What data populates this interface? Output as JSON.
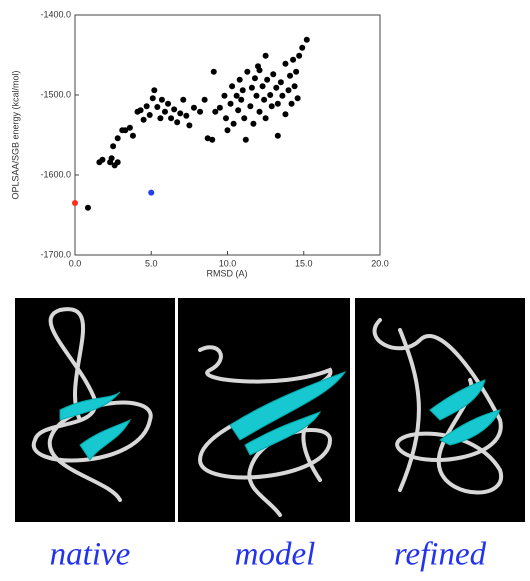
{
  "chart_data": {
    "type": "scatter",
    "xlabel": "RMSD (A)",
    "ylabel": "OPLSAA/SGB energy (kcal/mol)",
    "xlim": [
      0,
      20
    ],
    "ylim": [
      -1700,
      -1400
    ],
    "xticks": [
      {
        "value": 0,
        "label": "0.0"
      },
      {
        "value": 5,
        "label": "5.0"
      },
      {
        "value": 10,
        "label": "10.0"
      },
      {
        "value": 15,
        "label": "15.0"
      },
      {
        "value": 20,
        "label": "20.0"
      }
    ],
    "yticks": [
      {
        "value": -1700,
        "label": "-1700.0"
      },
      {
        "value": -1600,
        "label": "-1600.0"
      },
      {
        "value": -1500,
        "label": "-1500.0"
      },
      {
        "value": -1400,
        "label": "-1400.0"
      }
    ],
    "series": [
      {
        "color": "#000000",
        "x": [
          0.85,
          1.6,
          1.8,
          2.3,
          2.4,
          2.6,
          2.8,
          2.5,
          2.8,
          3.1,
          3.3,
          3.6,
          3.8,
          4.1,
          4.3,
          4.5,
          4.7,
          4.9,
          5.1,
          5.2,
          5.4,
          5.6,
          5.7,
          5.9,
          6.1,
          6.3,
          6.5,
          6.7,
          6.9,
          7.1,
          7.3,
          7.5,
          7.8,
          8.2,
          8.5,
          8.7,
          9.0,
          9.1,
          9.2,
          9.5,
          9.8,
          9.9,
          10.0,
          10.2,
          10.3,
          10.4,
          10.6,
          10.7,
          10.8,
          10.9,
          11.0,
          11.1,
          11.2,
          11.3,
          11.5,
          11.6,
          11.7,
          11.8,
          11.9,
          12.1,
          12.1,
          12.3,
          12.4,
          12.5,
          12.6,
          12.8,
          12.9,
          13.0,
          13.2,
          13.3,
          13.3,
          13.5,
          13.6,
          13.8,
          13.8,
          14.0,
          14.1,
          14.2,
          14.3,
          14.4,
          14.5,
          14.6,
          14.7,
          14.9,
          15.2,
          12.5,
          12.0
        ],
        "values": [
          -1641,
          -1584,
          -1581,
          -1584,
          -1579,
          -1588,
          -1584,
          -1564,
          -1554,
          -1544,
          -1544,
          -1541,
          -1551,
          -1521,
          -1519,
          -1531,
          -1514,
          -1525,
          -1504,
          -1494,
          -1515,
          -1529,
          -1506,
          -1521,
          -1511,
          -1529,
          -1518,
          -1534,
          -1523,
          -1506,
          -1526,
          -1538,
          -1516,
          -1521,
          -1506,
          -1554,
          -1556,
          -1471,
          -1521,
          -1516,
          -1501,
          -1529,
          -1544,
          -1511,
          -1489,
          -1536,
          -1501,
          -1519,
          -1481,
          -1506,
          -1494,
          -1529,
          -1556,
          -1471,
          -1514,
          -1491,
          -1536,
          -1479,
          -1501,
          -1521,
          -1469,
          -1489,
          -1506,
          -1529,
          -1481,
          -1500,
          -1514,
          -1474,
          -1491,
          -1511,
          -1551,
          -1484,
          -1501,
          -1461,
          -1524,
          -1494,
          -1476,
          -1511,
          -1456,
          -1489,
          -1471,
          -1504,
          -1451,
          -1441,
          -1431,
          -1451,
          -1464
        ]
      },
      {
        "color": "#ff2a1a",
        "x": [
          0
        ],
        "values": [
          -1635
        ]
      },
      {
        "color": "#1f3ff0",
        "x": [
          5
        ],
        "values": [
          -1622
        ]
      }
    ]
  },
  "panels": [
    {
      "label": "native"
    },
    {
      "label": "model"
    },
    {
      "label": "refined"
    }
  ]
}
